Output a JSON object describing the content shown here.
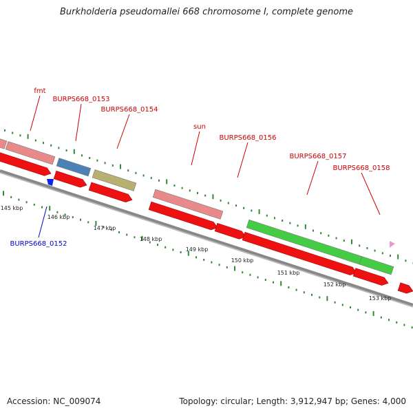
{
  "title": "Burkholderia pseudomallei 668 chromosome I, complete genome",
  "footer": {
    "accession": "Accession: NC_009074",
    "summary": "Topology: circular; Length: 3,912,947 bp; Genes: 4,000"
  },
  "gene_labels": [
    {
      "id": "fmt",
      "text": "fmt",
      "color": "#cc0000"
    },
    {
      "id": "0153",
      "text": "BURPS668_0153",
      "color": "#cc0000"
    },
    {
      "id": "0154",
      "text": "BURPS668_0154",
      "color": "#cc0000"
    },
    {
      "id": "sun",
      "text": "sun",
      "color": "#cc0000"
    },
    {
      "id": "0156",
      "text": "BURPS668_0156",
      "color": "#cc0000"
    },
    {
      "id": "0157",
      "text": "BURPS668_0157",
      "color": "#cc0000"
    },
    {
      "id": "0158",
      "text": "BURPS668_0158",
      "color": "#cc0000"
    },
    {
      "id": "0152",
      "text": "BURPS668_0152",
      "color": "#0000cc"
    }
  ],
  "kbp_ticks": [
    "145 kbp",
    "146 kbp",
    "147 kbp",
    "148 kbp",
    "149 kbp",
    "150 kbp",
    "151 kbp",
    "152 kbp",
    "153 kbp"
  ],
  "colors": {
    "cds": "#ee1111",
    "pink": "#e88a8a",
    "blue": "#4a82b8",
    "olive": "#b8b070",
    "green": "#44cc44",
    "tick": "#338833",
    "backbone": "#888888"
  }
}
